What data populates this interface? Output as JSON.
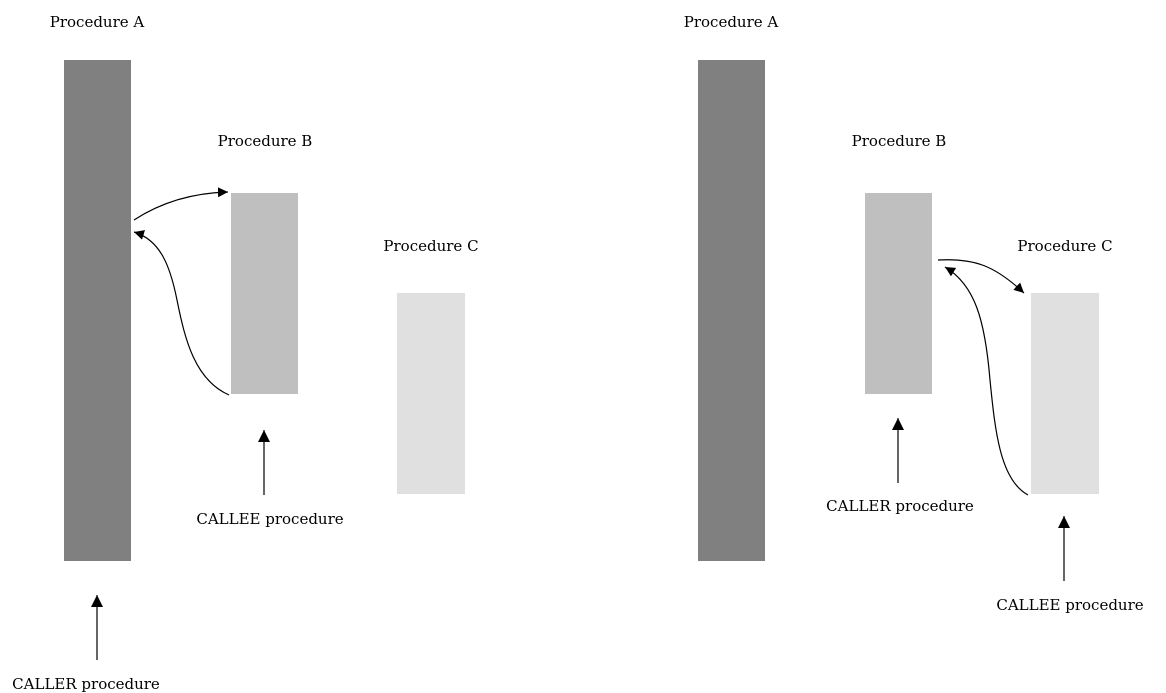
{
  "panels": [
    {
      "procedures": [
        {
          "label": "Procedure A",
          "color": "#808080"
        },
        {
          "label": "Procedure B",
          "color": "#bfbfbf"
        },
        {
          "label": "Procedure C",
          "color": "#e0e0e0"
        }
      ],
      "caller_label": "CALLER procedure",
      "callee_label": "CALLEE procedure"
    },
    {
      "procedures": [
        {
          "label": "Procedure A",
          "color": "#808080"
        },
        {
          "label": "Procedure B",
          "color": "#bfbfbf"
        },
        {
          "label": "Procedure C",
          "color": "#e0e0e0"
        }
      ],
      "caller_label": "CALLER procedure",
      "callee_label": "CALLEE procedure"
    }
  ]
}
